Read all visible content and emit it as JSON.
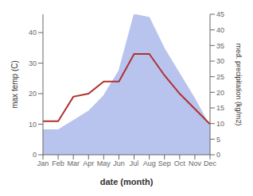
{
  "chart_data": {
    "type": "line",
    "categories": [
      "Jan",
      "Feb",
      "Mar",
      "Apr",
      "May",
      "Jun",
      "Jul",
      "Aug",
      "Sep",
      "Oct",
      "Nov",
      "Dec"
    ],
    "xlabel": "date (month)",
    "ylabel": "max temp (C)",
    "y2label": "med. precipitation (kg/m2)",
    "ylim": [
      0,
      46
    ],
    "yticks": [
      0,
      10,
      20,
      30,
      40
    ],
    "y2lim": [
      0,
      45
    ],
    "y2ticks": [
      0,
      5,
      10,
      15,
      20,
      25,
      30,
      35,
      40,
      45
    ],
    "grid": false,
    "series": [
      {
        "type": "area",
        "axis": "y2",
        "color": "#b8c4ee",
        "values": [
          8,
          8,
          11,
          14,
          19,
          27,
          45,
          44,
          34,
          26,
          18,
          9
        ]
      },
      {
        "type": "line",
        "color": "#b03030",
        "values": [
          11,
          11,
          19,
          20,
          24,
          24,
          33,
          33,
          26,
          20,
          15,
          10
        ]
      }
    ]
  }
}
